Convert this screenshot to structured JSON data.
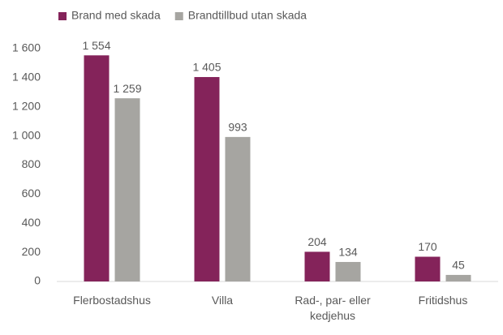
{
  "chart_data": {
    "type": "bar",
    "categories": [
      "Flerbostadshus",
      "Villa",
      "Rad-, par- eller kedjehus",
      "Fritidshus"
    ],
    "series": [
      {
        "name": "Brand med skada",
        "color": "#84235a",
        "values": [
          1554,
          1405,
          204,
          170
        ],
        "value_labels": [
          "1 554",
          "1 405",
          "204",
          "170"
        ]
      },
      {
        "name": "Brandtillbud utan skada",
        "color": "#a6a5a1",
        "values": [
          1259,
          993,
          134,
          45
        ],
        "value_labels": [
          "1 259",
          "993",
          "134",
          "45"
        ]
      }
    ],
    "ylim": [
      0,
      1600
    ],
    "yticks": [
      0,
      200,
      400,
      600,
      800,
      {
        "value": 1000,
        "label": "1 000"
      },
      {
        "value": 1200,
        "label": "1 200"
      },
      {
        "value": 1400,
        "label": "1 400"
      },
      {
        "value": 1600,
        "label": "1 600"
      }
    ],
    "grid": false,
    "legend": "top"
  }
}
